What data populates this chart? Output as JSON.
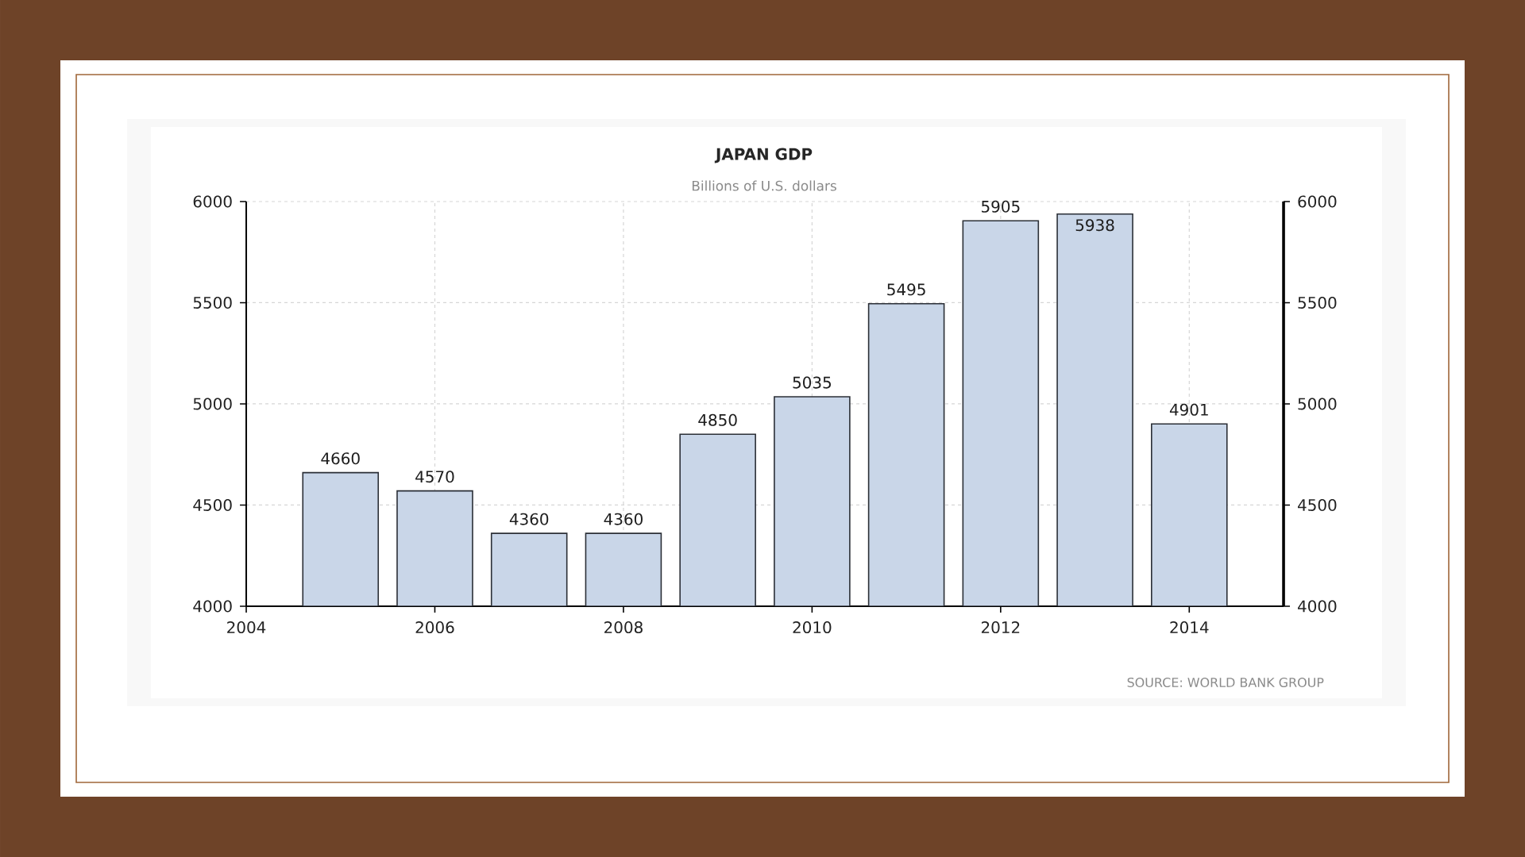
{
  "chart_data": {
    "type": "bar",
    "title": "JAPAN GDP",
    "subtitle": "Billions of U.S. dollars",
    "x": [
      2005,
      2006,
      2007,
      2008,
      2009,
      2010,
      2011,
      2012,
      2013,
      2014
    ],
    "values": [
      4660,
      4570,
      4360,
      4360,
      4850,
      5035,
      5495,
      5905,
      5938,
      4901
    ],
    "color": "#c9d6e8",
    "xlim": [
      2004,
      2015
    ],
    "xticks": [
      2004,
      2006,
      2008,
      2010,
      2012,
      2014
    ],
    "ylim": [
      4000,
      6000
    ],
    "yticks": [
      4000,
      4500,
      5000,
      5500,
      6000
    ],
    "y2lim": [
      4000,
      6000
    ],
    "y2ticks": [
      4000,
      4500,
      5000,
      5500,
      6000
    ],
    "grid": true,
    "data_labels": true,
    "annotations": [
      "SOURCE: WORLD BANK GROUP"
    ]
  }
}
